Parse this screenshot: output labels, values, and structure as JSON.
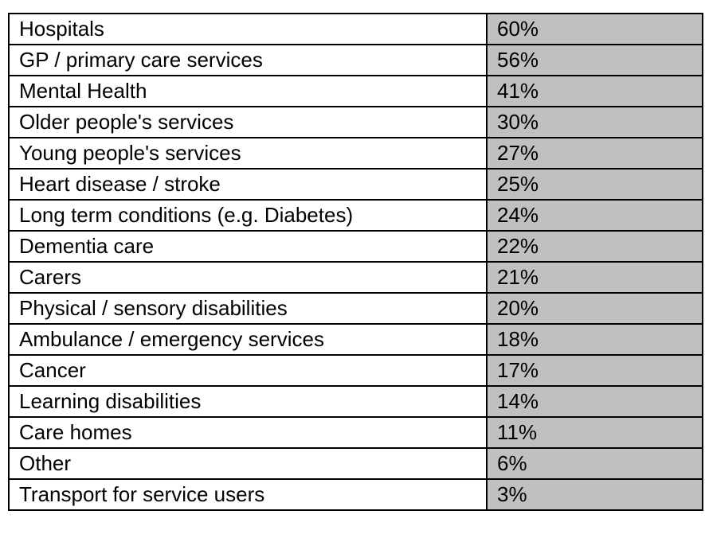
{
  "table": {
    "rows": [
      [
        "Hospitals",
        "60%"
      ],
      [
        "GP / primary care services",
        "56%"
      ],
      [
        "Mental Health",
        "41%"
      ],
      [
        "Older people's services",
        "30%"
      ],
      [
        "Young people's services",
        "27%"
      ],
      [
        "Heart disease / stroke",
        "25%"
      ],
      [
        "Long term conditions (e.g. Diabetes)",
        "24%"
      ],
      [
        "Dementia care",
        "22%"
      ],
      [
        "Carers",
        "21%"
      ],
      [
        "Physical / sensory disabilities",
        "20%"
      ],
      [
        "Ambulance / emergency services",
        "18%"
      ],
      [
        "Cancer",
        "17%"
      ],
      [
        "Learning disabilities",
        "14%"
      ],
      [
        "Care homes",
        "11%"
      ],
      [
        "Other",
        "6%"
      ],
      [
        "Transport for service users",
        "3%"
      ]
    ]
  }
}
